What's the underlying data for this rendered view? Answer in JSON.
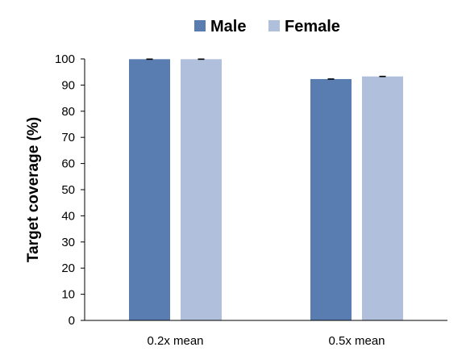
{
  "chart_data": {
    "type": "bar",
    "categories": [
      "0.2x mean",
      "0.5x mean"
    ],
    "series": [
      {
        "name": "Male",
        "values": [
          99.9,
          92.3
        ],
        "errors": [
          0.1,
          0.1
        ],
        "color": "#5a7db1"
      },
      {
        "name": "Female",
        "values": [
          99.9,
          93.3
        ],
        "errors": [
          0.1,
          0.1
        ],
        "color": "#b0bfdc"
      }
    ],
    "xlabel": "",
    "ylabel": "Target coverage (%)",
    "ylim": [
      0,
      100
    ],
    "yticks": [
      "0",
      "10",
      "20",
      "30",
      "40",
      "50",
      "60",
      "70",
      "80",
      "90",
      "100"
    ],
    "legend_position": "top-center",
    "grid": false
  }
}
